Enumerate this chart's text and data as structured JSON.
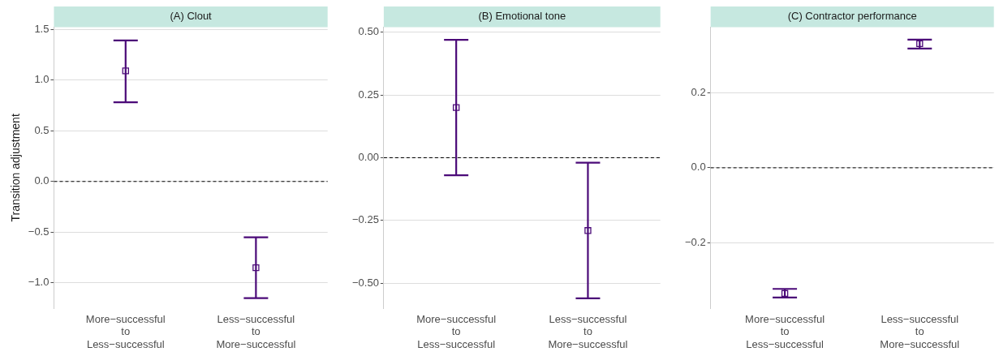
{
  "chart_data": [
    {
      "type": "scatter",
      "title": "(A) Clout",
      "ylabel": "Transition adjustment",
      "categories": [
        "More−successful\nto\nLess−successful",
        "Less−successful\nto\nMore−successful"
      ],
      "series": [
        {
          "color": "#4b0a78",
          "values": [
            1.09,
            -0.85
          ],
          "errors": [
            [
              0.78,
              1.39
            ],
            [
              -1.15,
              -0.55
            ]
          ]
        }
      ],
      "marker": "square",
      "grid": "y",
      "ylim": [
        -1.25,
        1.52
      ],
      "yticks": [
        {
          "value": -1,
          "label": "−1.0"
        },
        {
          "value": -0.5,
          "label": "−0.5"
        },
        {
          "value": 0,
          "label": "0.0"
        },
        {
          "value": 0.5,
          "label": "0.5"
        },
        {
          "value": 1,
          "label": "1.0"
        },
        {
          "value": 1.5,
          "label": "1.5"
        }
      ],
      "ref_lines": [
        {
          "axis": "y",
          "value": 0,
          "color": "#000000",
          "line_style": "dashed"
        }
      ]
    },
    {
      "type": "scatter",
      "title": "(B) Emotional tone",
      "categories": [
        "More−successful\nto\nLess−successful",
        "Less−successful\nto\nMore−successful"
      ],
      "series": [
        {
          "color": "#4b0a78",
          "values": [
            0.2,
            -0.29
          ],
          "errors": [
            [
              -0.07,
              0.47
            ],
            [
              -0.02,
              -0.56
            ]
          ]
        }
      ],
      "marker": "square",
      "grid": "y",
      "ylim": [
        -0.6,
        0.52
      ],
      "yticks": [
        {
          "value": -0.5,
          "label": "−0.50"
        },
        {
          "value": -0.25,
          "label": "−0.25"
        },
        {
          "value": 0,
          "label": "0.00"
        },
        {
          "value": 0.25,
          "label": "0.25"
        },
        {
          "value": 0.5,
          "label": "0.50"
        }
      ],
      "ref_lines": [
        {
          "axis": "y",
          "value": 0,
          "color": "#000000",
          "line_style": "dashed"
        }
      ]
    },
    {
      "type": "scatter",
      "title": "(C) Contractor performance",
      "categories": [
        "More−successful\nto\nLess−successful",
        "Less−successful\nto\nMore−successful"
      ],
      "series": [
        {
          "color": "#4b0a78",
          "values": [
            -0.336,
            0.332
          ],
          "errors": [
            [
              -0.347,
              -0.324
            ],
            [
              0.319,
              0.343
            ]
          ]
        }
      ],
      "marker": "square",
      "grid": "y",
      "ylim": [
        -0.376,
        0.376
      ],
      "yticks": [
        {
          "value": -0.2,
          "label": "−0.2"
        },
        {
          "value": 0,
          "label": "0.0"
        },
        {
          "value": 0.2,
          "label": "0.2"
        }
      ],
      "ref_lines": [
        {
          "axis": "y",
          "value": 0,
          "color": "#000000",
          "line_style": "dashed"
        }
      ]
    }
  ]
}
